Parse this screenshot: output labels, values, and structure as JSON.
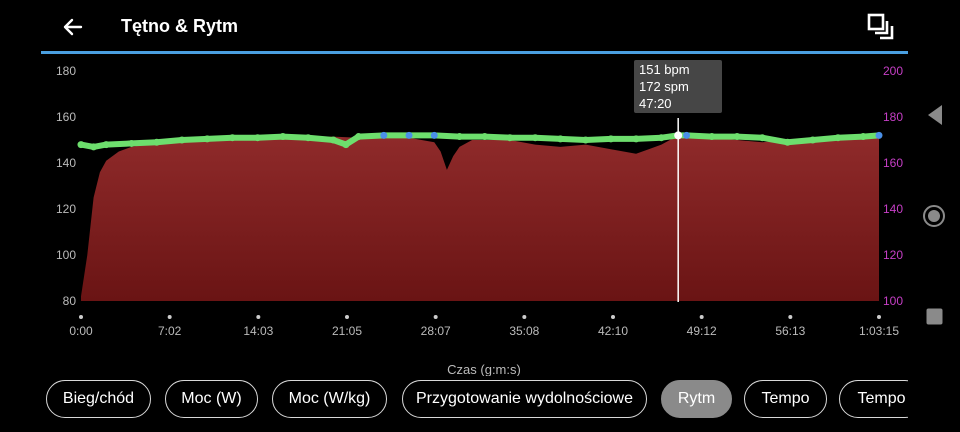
{
  "header": {
    "title": "Tętno & Rytm"
  },
  "tooltip": {
    "hr": "151 bpm",
    "cadence": "172 spm",
    "time": "47:20"
  },
  "chart_data": {
    "type": "area",
    "xlabel": "Czas (g:m:s)",
    "x_ticks": [
      "0:00",
      "7:02",
      "14:03",
      "21:05",
      "28:07",
      "35:08",
      "42:10",
      "49:12",
      "56:13",
      "1:03:15"
    ],
    "x_range_min": [
      0,
      63.25
    ],
    "y_left": {
      "ticks": [
        "180",
        "160",
        "140",
        "120",
        "100",
        "80"
      ],
      "range": [
        80,
        180
      ]
    },
    "y_right": {
      "ticks": [
        "200",
        "180",
        "160",
        "140",
        "120",
        "100"
      ],
      "range": [
        100,
        200
      ]
    },
    "grid": false,
    "colors": {
      "heart_rate": "#8f2a2a",
      "cadence": "#6dde6d",
      "cadence_high": "#4a90e8",
      "right_axis": "#c63fc6",
      "accent": "#4a9fe0"
    },
    "series": [
      {
        "axis": "left",
        "x": [
          0,
          0.5,
          1,
          1.5,
          2,
          3,
          4,
          5,
          6,
          7,
          8,
          9,
          10,
          12,
          14,
          16,
          18,
          20,
          22,
          24,
          26,
          27,
          28,
          28.5,
          29,
          29.5,
          30,
          31,
          32,
          34,
          36,
          38,
          40,
          42,
          43,
          44,
          45,
          46,
          47,
          48,
          50,
          52,
          54,
          56,
          58,
          60,
          62,
          63.25
        ],
        "values": [
          82,
          100,
          125,
          136,
          141,
          145,
          147,
          148,
          148.5,
          149,
          149.5,
          150,
          150.5,
          151,
          151,
          151.5,
          151,
          151.5,
          151,
          151,
          151,
          150,
          149,
          145,
          137,
          143,
          147,
          150,
          150,
          150,
          148,
          147,
          148,
          146,
          145,
          144,
          146,
          148,
          151,
          151,
          151,
          150,
          149,
          150,
          151,
          151,
          151,
          151
        ]
      },
      {
        "axis": "right",
        "x": [
          0,
          1,
          2,
          4,
          6,
          8,
          10,
          12,
          14,
          16,
          18,
          20,
          21,
          22,
          24,
          26,
          28,
          30,
          32,
          34,
          36,
          38,
          40,
          42,
          44,
          46,
          47.33,
          48,
          50,
          52,
          54,
          56,
          58,
          60,
          62,
          63.25
        ],
        "values": [
          168,
          167,
          168,
          168.5,
          169,
          170,
          170.5,
          171,
          171,
          171.5,
          171,
          170,
          168,
          171.5,
          172,
          172,
          172,
          171.5,
          171.5,
          171,
          171,
          170.5,
          170,
          170.5,
          170.5,
          171,
          172,
          172,
          171.5,
          171.5,
          171,
          169,
          170,
          171,
          171.5,
          172
        ]
      }
    ]
  },
  "chips": [
    "Bieg/chód",
    "Moc (W)",
    "Moc (W/kg)",
    "Przygotowanie wydolnościowe",
    "Rytm",
    "Tempo",
    "Tempo"
  ],
  "active_chip": "Rytm"
}
